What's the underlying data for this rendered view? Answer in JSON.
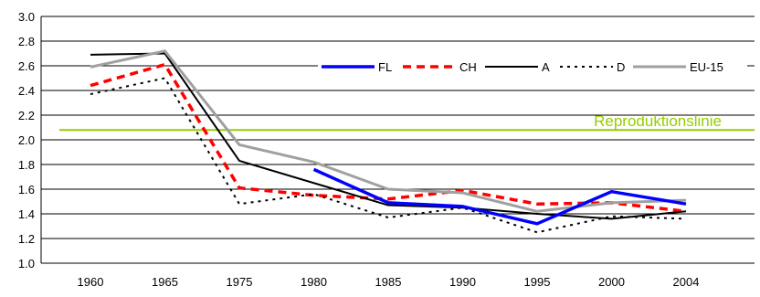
{
  "chart_data": {
    "type": "line",
    "title": "",
    "xlabel": "",
    "ylabel": "",
    "categories": [
      "1960",
      "1965",
      "1975",
      "1980",
      "1985",
      "1990",
      "1995",
      "2000",
      "2004"
    ],
    "ylim": [
      1.0,
      3.0
    ],
    "yticks": [
      "1.0",
      "1.2",
      "1.4",
      "1.6",
      "1.8",
      "2.0",
      "2.2",
      "2.4",
      "2.6",
      "2.8",
      "3.0"
    ],
    "grid": true,
    "legend_position": "top-right",
    "series": [
      {
        "name": "FL",
        "color": "#0000ff",
        "dash": "solid",
        "values": [
          null,
          null,
          null,
          1.76,
          1.49,
          1.46,
          1.32,
          1.58,
          1.48
        ]
      },
      {
        "name": "CH",
        "color": "#ff0000",
        "dash": "dashed",
        "values": [
          2.44,
          2.61,
          1.61,
          1.55,
          1.52,
          1.59,
          1.48,
          1.49,
          1.42
        ]
      },
      {
        "name": "A",
        "color": "#000000",
        "dash": "solid",
        "values": [
          2.69,
          2.7,
          1.83,
          1.65,
          1.47,
          1.45,
          1.4,
          1.36,
          1.42
        ]
      },
      {
        "name": "D",
        "color": "#000000",
        "dash": "dotted",
        "values": [
          2.37,
          2.5,
          1.48,
          1.56,
          1.37,
          1.45,
          1.25,
          1.38,
          1.36
        ]
      },
      {
        "name": "EU-15",
        "color": "#a0a0a0",
        "dash": "solid",
        "values": [
          2.59,
          2.72,
          1.96,
          1.82,
          1.6,
          1.57,
          1.42,
          1.49,
          1.51
        ]
      }
    ],
    "reference_line": {
      "label": "Reproduktionslinie",
      "value": 2.08,
      "color": "#99cc00"
    }
  }
}
